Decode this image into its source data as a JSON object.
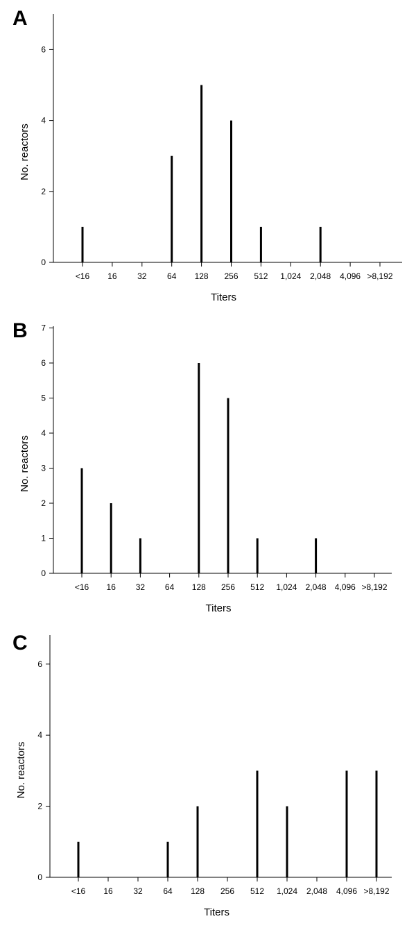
{
  "panels": [
    {
      "letter": "A",
      "chart_data": {
        "type": "bar",
        "categories": [
          "<16",
          "16",
          "32",
          "64",
          "128",
          "256",
          "512",
          "1,024",
          "2,048",
          "4,096",
          ">8,192"
        ],
        "values": [
          1,
          0,
          0,
          3,
          5,
          4,
          1,
          0,
          1,
          0,
          0
        ],
        "xlabel": "Titers",
        "ylabel": "No. reactors",
        "ylim": [
          0,
          7
        ],
        "yticks": [
          0,
          2,
          4,
          6
        ],
        "grid": false
      }
    },
    {
      "letter": "B",
      "chart_data": {
        "type": "bar",
        "categories": [
          "<16",
          "16",
          "32",
          "64",
          "128",
          "256",
          "512",
          "1,024",
          "2,048",
          "4,096",
          ">8,192"
        ],
        "values": [
          3,
          2,
          1,
          0,
          6,
          5,
          1,
          0,
          1,
          0,
          0
        ],
        "xlabel": "Titers",
        "ylabel": "No. reactors",
        "ylim": [
          0,
          7
        ],
        "yticks": [
          0,
          1,
          2,
          3,
          4,
          5,
          6,
          7
        ],
        "grid": false
      }
    },
    {
      "letter": "C",
      "chart_data": {
        "type": "bar",
        "categories": [
          "<16",
          "16",
          "32",
          "64",
          "128",
          "256",
          "512",
          "1,024",
          "2,048",
          "4,096",
          ">8,192"
        ],
        "values": [
          1,
          0,
          0,
          1,
          2,
          0,
          3,
          2,
          0,
          3,
          3
        ],
        "xlabel": "Titers",
        "ylabel": "No. reactors",
        "ylim": [
          0,
          7
        ],
        "yticks": [
          0,
          2,
          4,
          6
        ],
        "grid": false
      }
    }
  ]
}
